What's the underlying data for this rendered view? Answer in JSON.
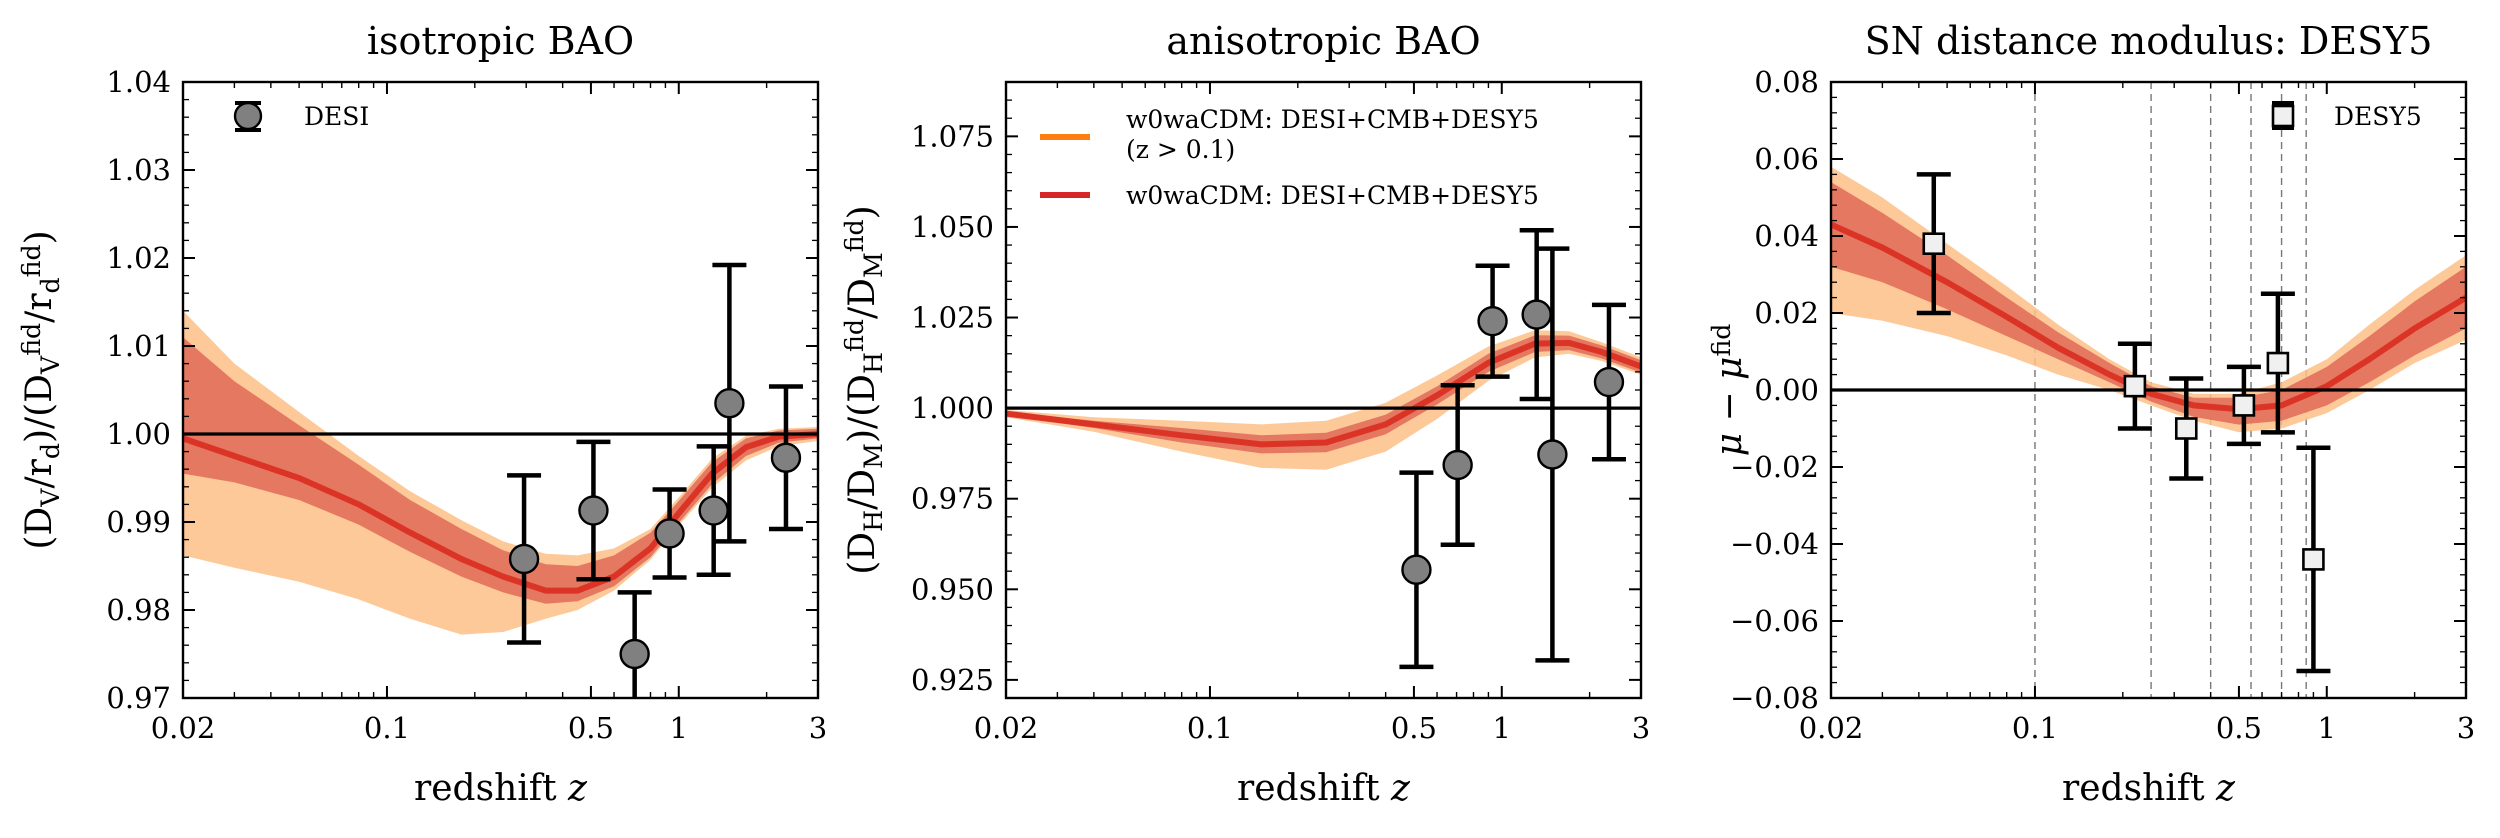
{
  "chart_data": [
    {
      "type": "scatter",
      "title": "isotropic BAO",
      "xlabel": "redshift z",
      "ylabel": "(D_V/r_d)/(D_V^fid/r_d^fid)",
      "xscale": "log",
      "xlim": [
        0.02,
        3
      ],
      "ylim": [
        0.97,
        1.04
      ],
      "xticks": [
        "0.02",
        "0.1",
        "0.5",
        "1",
        "3"
      ],
      "yticks": [
        "0.97",
        "0.98",
        "0.99",
        "1.00",
        "1.01",
        "1.02",
        "1.03",
        "1.04"
      ],
      "reference_line": 1.0,
      "legend": {
        "location": "upper-left",
        "entries": [
          "DESI"
        ]
      },
      "points": {
        "name": "DESI",
        "marker": "circle",
        "color": "#808080",
        "x": [
          0.295,
          0.51,
          0.706,
          0.93,
          1.317,
          1.491,
          2.33
        ],
        "y": [
          0.9858,
          0.9913,
          0.975,
          0.9887,
          0.9913,
          1.0035,
          0.9973
        ],
        "yerr": [
          0.0095,
          0.0078,
          0.007,
          0.005,
          0.0073,
          0.0157,
          0.0081
        ]
      },
      "model": {
        "x": [
          0.02,
          0.03,
          0.05,
          0.08,
          0.12,
          0.18,
          0.25,
          0.35,
          0.45,
          0.6,
          0.8,
          1.0,
          1.3,
          1.7,
          2.2,
          3.0
        ],
        "y": [
          0.9995,
          0.9975,
          0.995,
          0.992,
          0.9888,
          0.9858,
          0.9838,
          0.9822,
          0.9822,
          0.9838,
          0.987,
          0.991,
          0.9955,
          0.9985,
          0.9997,
          1.0
        ],
        "inner_lo": [
          0.9955,
          0.9945,
          0.9925,
          0.9897,
          0.9866,
          0.9838,
          0.982,
          0.9807,
          0.981,
          0.9827,
          0.986,
          0.9899,
          0.9943,
          0.9975,
          0.999,
          0.9995
        ],
        "inner_hi": [
          1.011,
          1.006,
          1.001,
          0.9965,
          0.9925,
          0.9892,
          0.9868,
          0.9852,
          0.985,
          0.9862,
          0.9888,
          0.9924,
          0.9968,
          0.9995,
          1.0004,
          1.0006
        ],
        "outer_lo": [
          0.9862,
          0.9848,
          0.9832,
          0.9812,
          0.979,
          0.9772,
          0.9775,
          0.979,
          0.98,
          0.9822,
          0.9857,
          0.9896,
          0.9939,
          0.997,
          0.9986,
          0.9992
        ],
        "outer_hi": [
          1.014,
          1.008,
          1.0025,
          0.9975,
          0.9935,
          0.9902,
          0.9878,
          0.9864,
          0.9862,
          0.987,
          0.9892,
          0.9928,
          0.9972,
          0.9998,
          1.0006,
          1.0008
        ]
      }
    },
    {
      "type": "scatter",
      "title": "anisotropic BAO",
      "xlabel": "redshift z",
      "ylabel": "(D_H/D_M)/(D_H^fid/D_M^fid)",
      "xscale": "log",
      "xlim": [
        0.02,
        3
      ],
      "ylim": [
        0.92,
        1.09
      ],
      "xticks": [
        "0.02",
        "0.1",
        "0.5",
        "1",
        "3"
      ],
      "yticks": [
        "0.925",
        "0.950",
        "0.975",
        "1.000",
        "1.025",
        "1.050",
        "1.075"
      ],
      "reference_line": 1.0,
      "legend": {
        "location": "upper-left",
        "entries": [
          {
            "label_line1": "w0waCDM: DESI+CMB+DESY5",
            "label_line2": "(z > 0.1)",
            "color": "#ff7f0e"
          },
          {
            "label_line1": "w0waCDM: DESI+CMB+DESY5",
            "label_line2": "",
            "color": "#d62728"
          }
        ]
      },
      "points": {
        "marker": "circle",
        "color": "#808080",
        "x": [
          0.51,
          0.706,
          0.93,
          1.317,
          1.491,
          2.33
        ],
        "y": [
          0.9554,
          0.9843,
          1.024,
          1.0258,
          0.9872,
          1.0072
        ],
        "yerr": [
          0.0268,
          0.022,
          0.0153,
          0.0233,
          0.0568,
          0.0213
        ]
      },
      "model": {
        "x": [
          0.02,
          0.04,
          0.08,
          0.15,
          0.25,
          0.4,
          0.6,
          0.9,
          1.3,
          1.7,
          2.2,
          3.0
        ],
        "y": [
          0.9985,
          0.9955,
          0.9925,
          0.99,
          0.9905,
          0.9955,
          1.0035,
          1.0125,
          1.0178,
          1.018,
          1.0155,
          1.0115
        ],
        "inner_lo": [
          0.998,
          0.9945,
          0.9905,
          0.9875,
          0.9878,
          0.9928,
          1.001,
          1.01,
          1.0155,
          1.016,
          1.0137,
          1.0098
        ],
        "inner_hi": [
          0.999,
          0.9965,
          0.9945,
          0.9925,
          0.9932,
          0.9982,
          1.006,
          1.015,
          1.0201,
          1.02,
          1.0173,
          1.0132
        ],
        "outer_lo": [
          0.9975,
          0.9935,
          0.988,
          0.9835,
          0.983,
          0.988,
          0.997,
          1.0075,
          1.014,
          1.015,
          1.013,
          1.0092
        ],
        "outer_hi": [
          0.9995,
          0.9975,
          0.9965,
          0.9955,
          0.9965,
          1.0015,
          1.009,
          1.017,
          1.0215,
          1.0212,
          1.0182,
          1.014
        ]
      }
    },
    {
      "type": "scatter",
      "title": "SN distance modulus: DESY5",
      "xlabel": "redshift z",
      "ylabel": "μ − μ^fid",
      "xscale": "log",
      "xlim": [
        0.02,
        3
      ],
      "ylim": [
        -0.08,
        0.08
      ],
      "xticks": [
        "0.02",
        "0.1",
        "0.5",
        "1",
        "3"
      ],
      "yticks": [
        "−0.08",
        "−0.06",
        "−0.04",
        "−0.02",
        "0.00",
        "0.02",
        "0.04",
        "0.06",
        "0.08"
      ],
      "reference_line": 0.0,
      "bin_edges": [
        0.1,
        0.25,
        0.4,
        0.55,
        0.7,
        0.85
      ],
      "legend": {
        "location": "upper-right",
        "entries": [
          "DESY5"
        ]
      },
      "points": {
        "name": "DESY5",
        "marker": "square",
        "color": "#f0f0f0",
        "x": [
          0.045,
          0.22,
          0.33,
          0.52,
          0.68,
          0.9
        ],
        "y": [
          0.038,
          0.001,
          -0.01,
          -0.004,
          0.007,
          -0.044
        ],
        "yerr": [
          0.018,
          0.011,
          0.013,
          0.01,
          0.018,
          0.029
        ]
      },
      "model": {
        "x": [
          0.02,
          0.03,
          0.05,
          0.08,
          0.12,
          0.18,
          0.25,
          0.35,
          0.5,
          0.7,
          1.0,
          1.4,
          2.0,
          3.0
        ],
        "y": [
          0.043,
          0.037,
          0.028,
          0.019,
          0.011,
          0.004,
          -0.001,
          -0.004,
          -0.005,
          -0.004,
          0.001,
          0.008,
          0.016,
          0.024
        ],
        "inner_lo": [
          0.032,
          0.028,
          0.021,
          0.014,
          0.008,
          0.002,
          -0.003,
          -0.007,
          -0.009,
          -0.008,
          -0.004,
          0.002,
          0.009,
          0.016
        ],
        "inner_hi": [
          0.054,
          0.046,
          0.035,
          0.024,
          0.015,
          0.007,
          0.001,
          -0.002,
          -0.002,
          0.0,
          0.006,
          0.014,
          0.023,
          0.032
        ],
        "outer_lo": [
          0.02,
          0.018,
          0.014,
          0.009,
          0.004,
          0.0,
          -0.004,
          -0.008,
          -0.011,
          -0.01,
          -0.006,
          0.0,
          0.007,
          0.013
        ],
        "outer_hi": [
          0.058,
          0.05,
          0.038,
          0.027,
          0.017,
          0.008,
          0.002,
          -0.001,
          -0.001,
          0.002,
          0.008,
          0.017,
          0.026,
          0.035
        ]
      }
    }
  ],
  "colors": {
    "orange": "#ff7f0e",
    "red": "#d62728",
    "outer_band": "#fdbf87",
    "inner_band": "#e06a57",
    "ref_line": "#000000",
    "grey_marker": "#808080"
  }
}
